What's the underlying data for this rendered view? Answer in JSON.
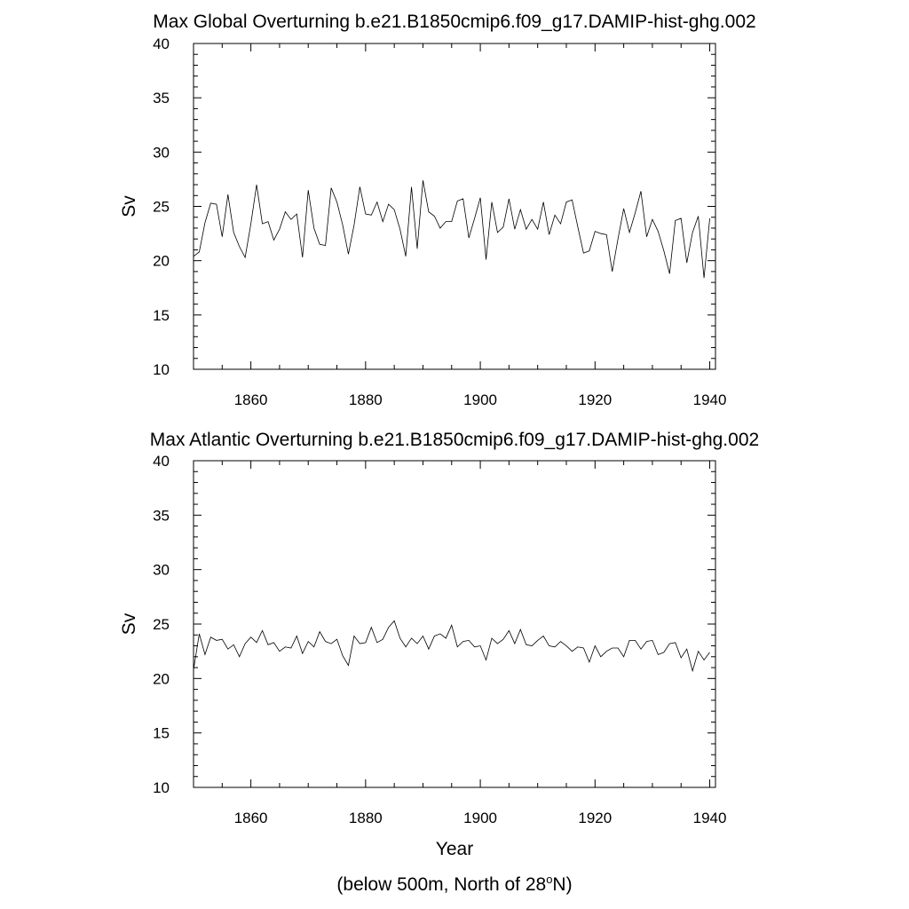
{
  "figure": {
    "footnote_prefix": "(below 500m, North of 28",
    "footnote_sup": "o",
    "footnote_suffix": "N)"
  },
  "chart_data": [
    {
      "type": "line",
      "title": "Max Global Overturning b.e21.B1850cmip6.f09_g17.DAMIP-hist-ghg.002",
      "xlabel": "",
      "ylabel": "Sv",
      "xlim": [
        1850,
        1941
      ],
      "ylim": [
        10,
        40
      ],
      "x_ticks": [
        1860,
        1880,
        1900,
        1920,
        1940
      ],
      "y_ticks": [
        10,
        15,
        20,
        25,
        30,
        35,
        40
      ],
      "grid": false,
      "line_color": "#000000",
      "series": [
        {
          "x_start": 1850,
          "x_step": 1,
          "values": [
            20.4,
            20.8,
            23.5,
            25.3,
            25.2,
            22.2,
            26.1,
            22.6,
            21.3,
            20.3,
            23.4,
            27.0,
            23.4,
            23.6,
            21.9,
            22.9,
            24.5,
            23.8,
            24.3,
            20.3,
            26.5,
            23.0,
            21.5,
            21.4,
            26.7,
            25.4,
            23.3,
            20.6,
            23.3,
            26.8,
            24.3,
            24.2,
            25.4,
            23.6,
            25.2,
            24.7,
            22.9,
            20.4,
            26.8,
            21.1,
            27.4,
            24.5,
            24.1,
            23.0,
            23.6,
            23.6,
            25.5,
            25.7,
            22.1,
            23.9,
            25.8,
            20.1,
            25.4,
            22.6,
            23.1,
            25.7,
            22.9,
            24.7,
            22.9,
            23.8,
            22.9,
            25.4,
            22.4,
            24.2,
            23.4,
            25.4,
            25.6,
            23.1,
            20.7,
            20.9,
            22.7,
            22.5,
            22.4,
            19.0,
            22.0,
            24.8,
            22.6,
            24.4,
            26.4,
            22.2,
            23.8,
            22.7,
            20.9,
            18.8,
            23.7,
            23.9,
            19.8,
            22.6,
            24.1,
            18.4,
            23.9
          ]
        }
      ]
    },
    {
      "type": "line",
      "title": "Max Atlantic Overturning b.e21.B1850cmip6.f09_g17.DAMIP-hist-ghg.002",
      "xlabel": "Year",
      "ylabel": "Sv",
      "xlim": [
        1850,
        1941
      ],
      "ylim": [
        10,
        40
      ],
      "x_ticks": [
        1860,
        1880,
        1900,
        1920,
        1940
      ],
      "y_ticks": [
        10,
        15,
        20,
        25,
        30,
        35,
        40
      ],
      "grid": false,
      "line_color": "#000000",
      "series": [
        {
          "x_start": 1850,
          "x_step": 1,
          "values": [
            20.8,
            24.1,
            22.2,
            23.8,
            23.5,
            23.6,
            22.7,
            23.1,
            22.0,
            23.2,
            23.8,
            23.3,
            24.4,
            23.1,
            23.3,
            22.5,
            22.9,
            22.8,
            23.9,
            22.3,
            23.4,
            22.9,
            24.3,
            23.4,
            23.2,
            23.6,
            22.1,
            21.2,
            23.9,
            23.2,
            23.3,
            24.7,
            23.3,
            23.6,
            24.7,
            25.3,
            23.7,
            22.9,
            23.7,
            23.2,
            23.9,
            22.7,
            23.9,
            24.1,
            23.7,
            24.9,
            22.9,
            23.4,
            23.5,
            22.9,
            23.0,
            21.7,
            23.7,
            23.2,
            23.6,
            24.4,
            23.2,
            24.5,
            23.1,
            23.0,
            23.5,
            23.9,
            23.0,
            22.9,
            23.4,
            23.0,
            22.5,
            22.9,
            22.8,
            21.5,
            23.0,
            22.0,
            22.5,
            22.8,
            22.8,
            22.0,
            23.5,
            23.5,
            22.7,
            23.4,
            23.5,
            22.2,
            22.4,
            23.2,
            23.3,
            21.9,
            22.7,
            20.7,
            22.5,
            21.7,
            22.4
          ]
        }
      ]
    }
  ]
}
